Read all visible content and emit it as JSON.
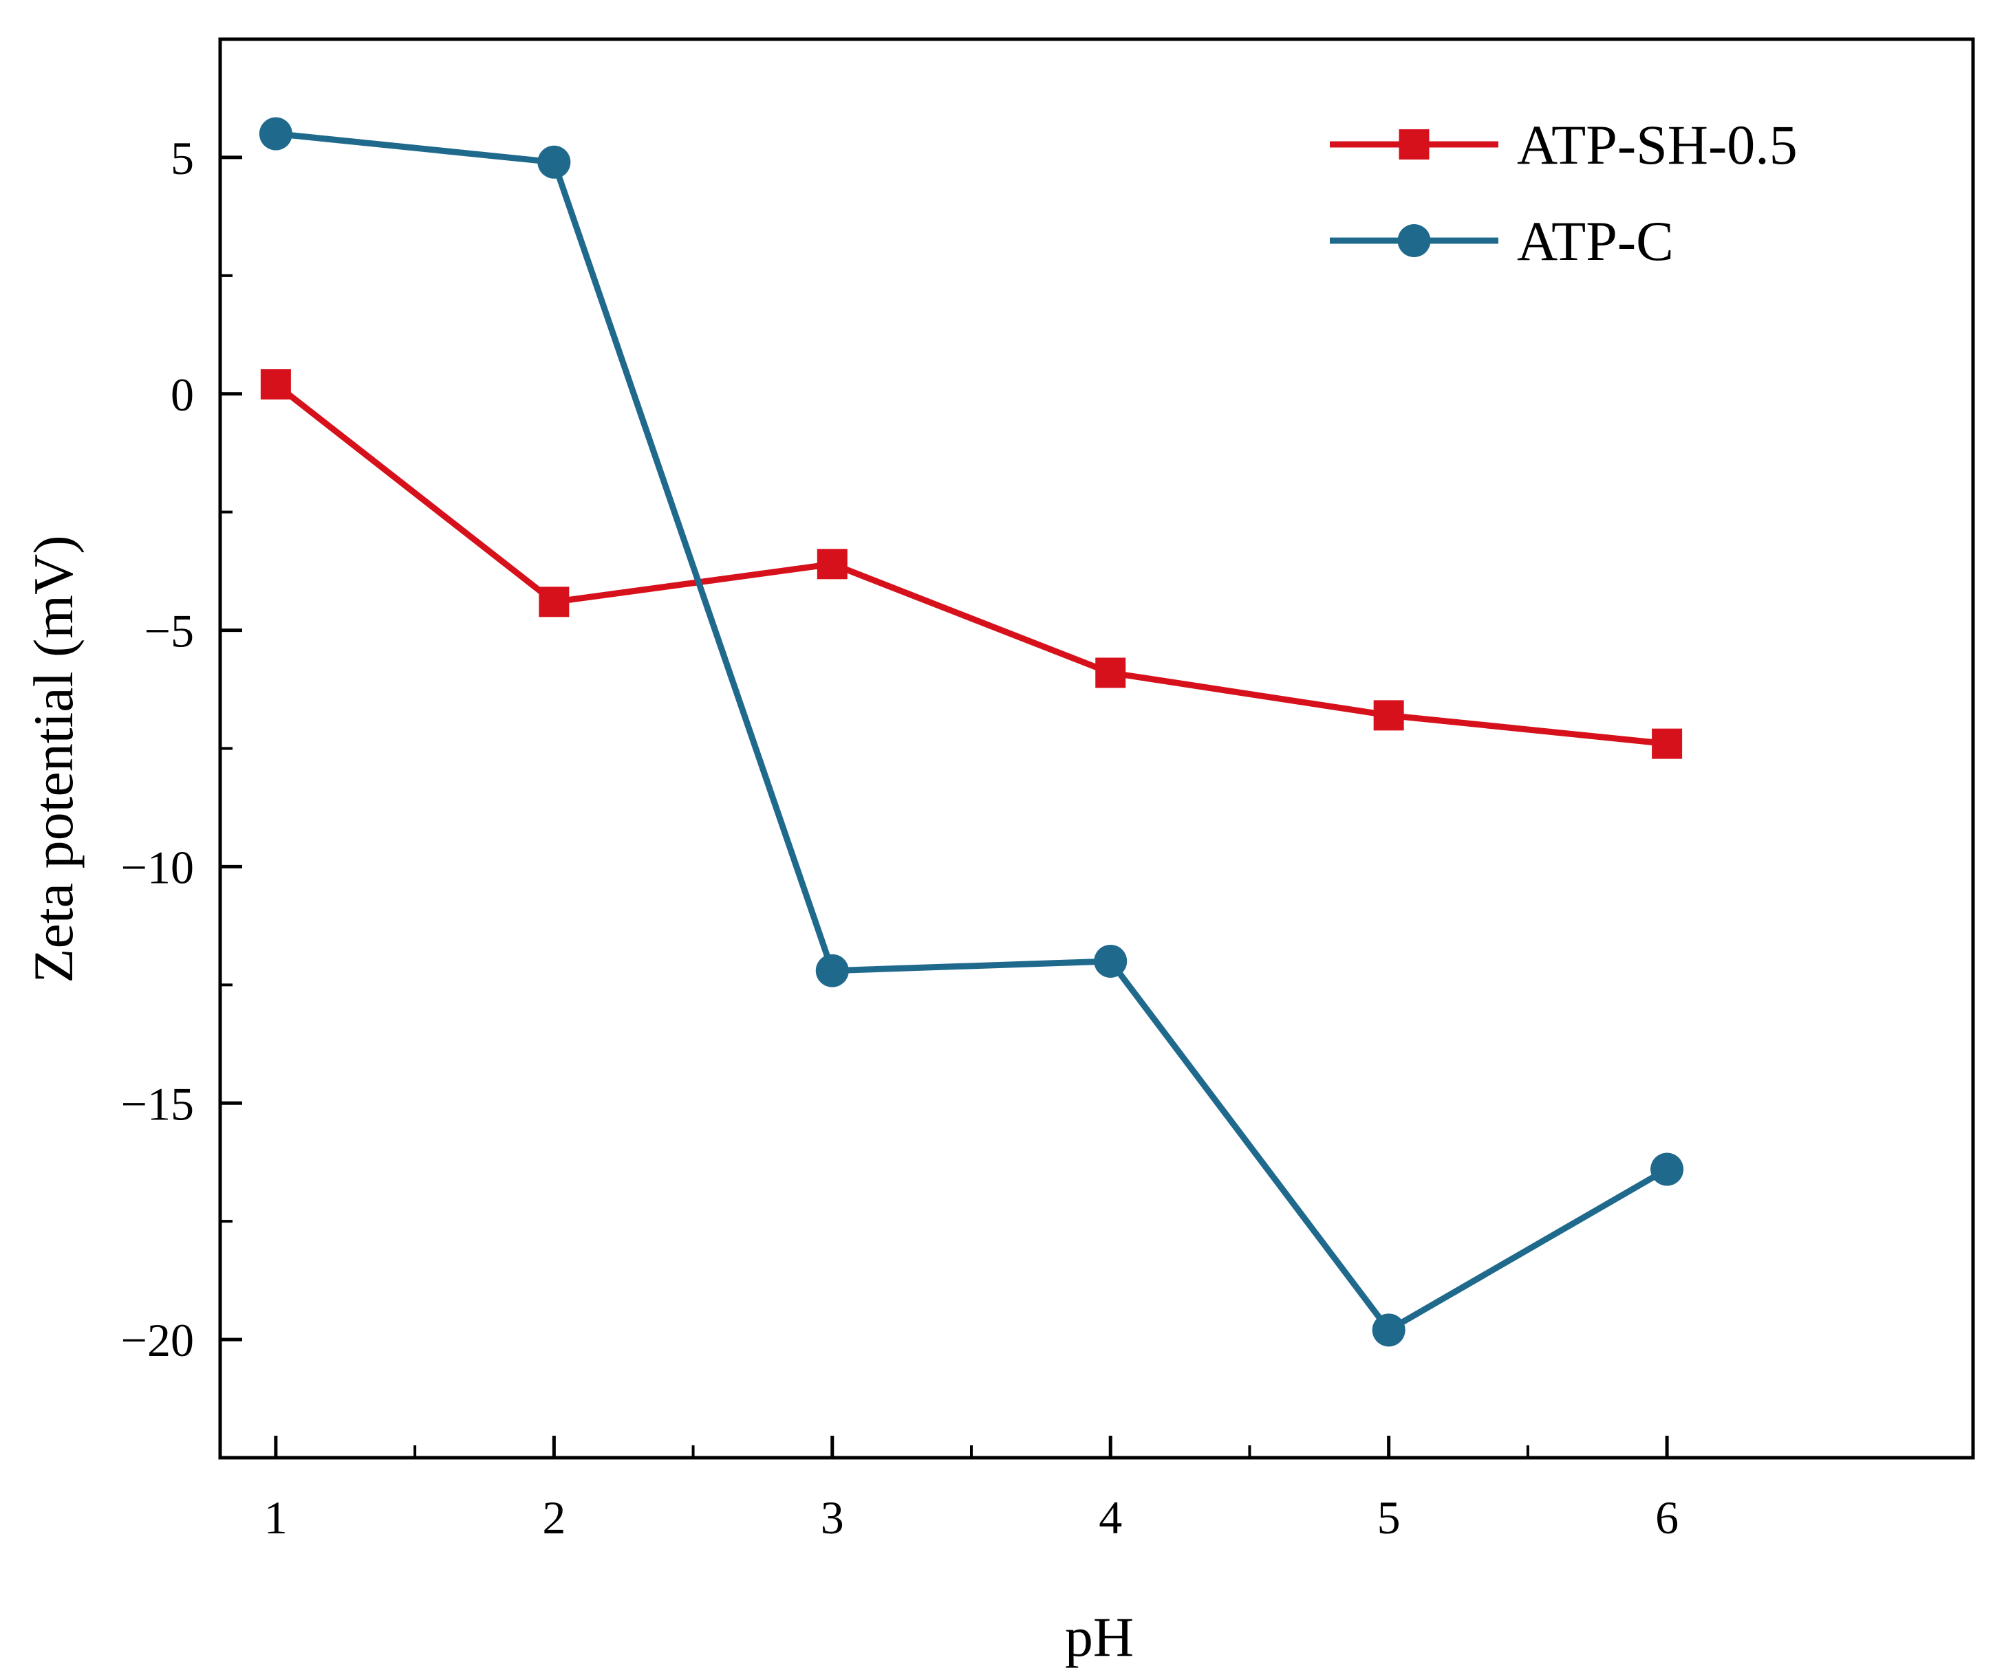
{
  "chart_data": {
    "type": "line",
    "title": "",
    "xlabel": "pH",
    "ylabel": "Zeta potential (mV)",
    "x": [
      1,
      2,
      3,
      4,
      5,
      6
    ],
    "x_ticks": [
      "1",
      "2",
      "3",
      "4",
      "5",
      "6"
    ],
    "xlim": [
      0.8,
      7.1
    ],
    "ylim": [
      -22.5,
      7.5
    ],
    "y_ticks": [
      5,
      0,
      -5,
      -10,
      -15,
      -20
    ],
    "y_tick_labels": [
      "5",
      "0",
      "−5",
      "−10",
      "−15",
      "−20"
    ],
    "grid": false,
    "legend_position": "top-right",
    "series": [
      {
        "name": "ATP-SH-0.5",
        "marker": "square",
        "color": "#d7111b",
        "values": [
          0.2,
          -4.4,
          -3.6,
          -5.9,
          -6.8,
          -7.4
        ]
      },
      {
        "name": "ATP-C",
        "marker": "circle",
        "color": "#1f6a8c",
        "values": [
          5.5,
          4.9,
          -12.2,
          -12.0,
          -19.8,
          -16.4
        ]
      }
    ]
  }
}
